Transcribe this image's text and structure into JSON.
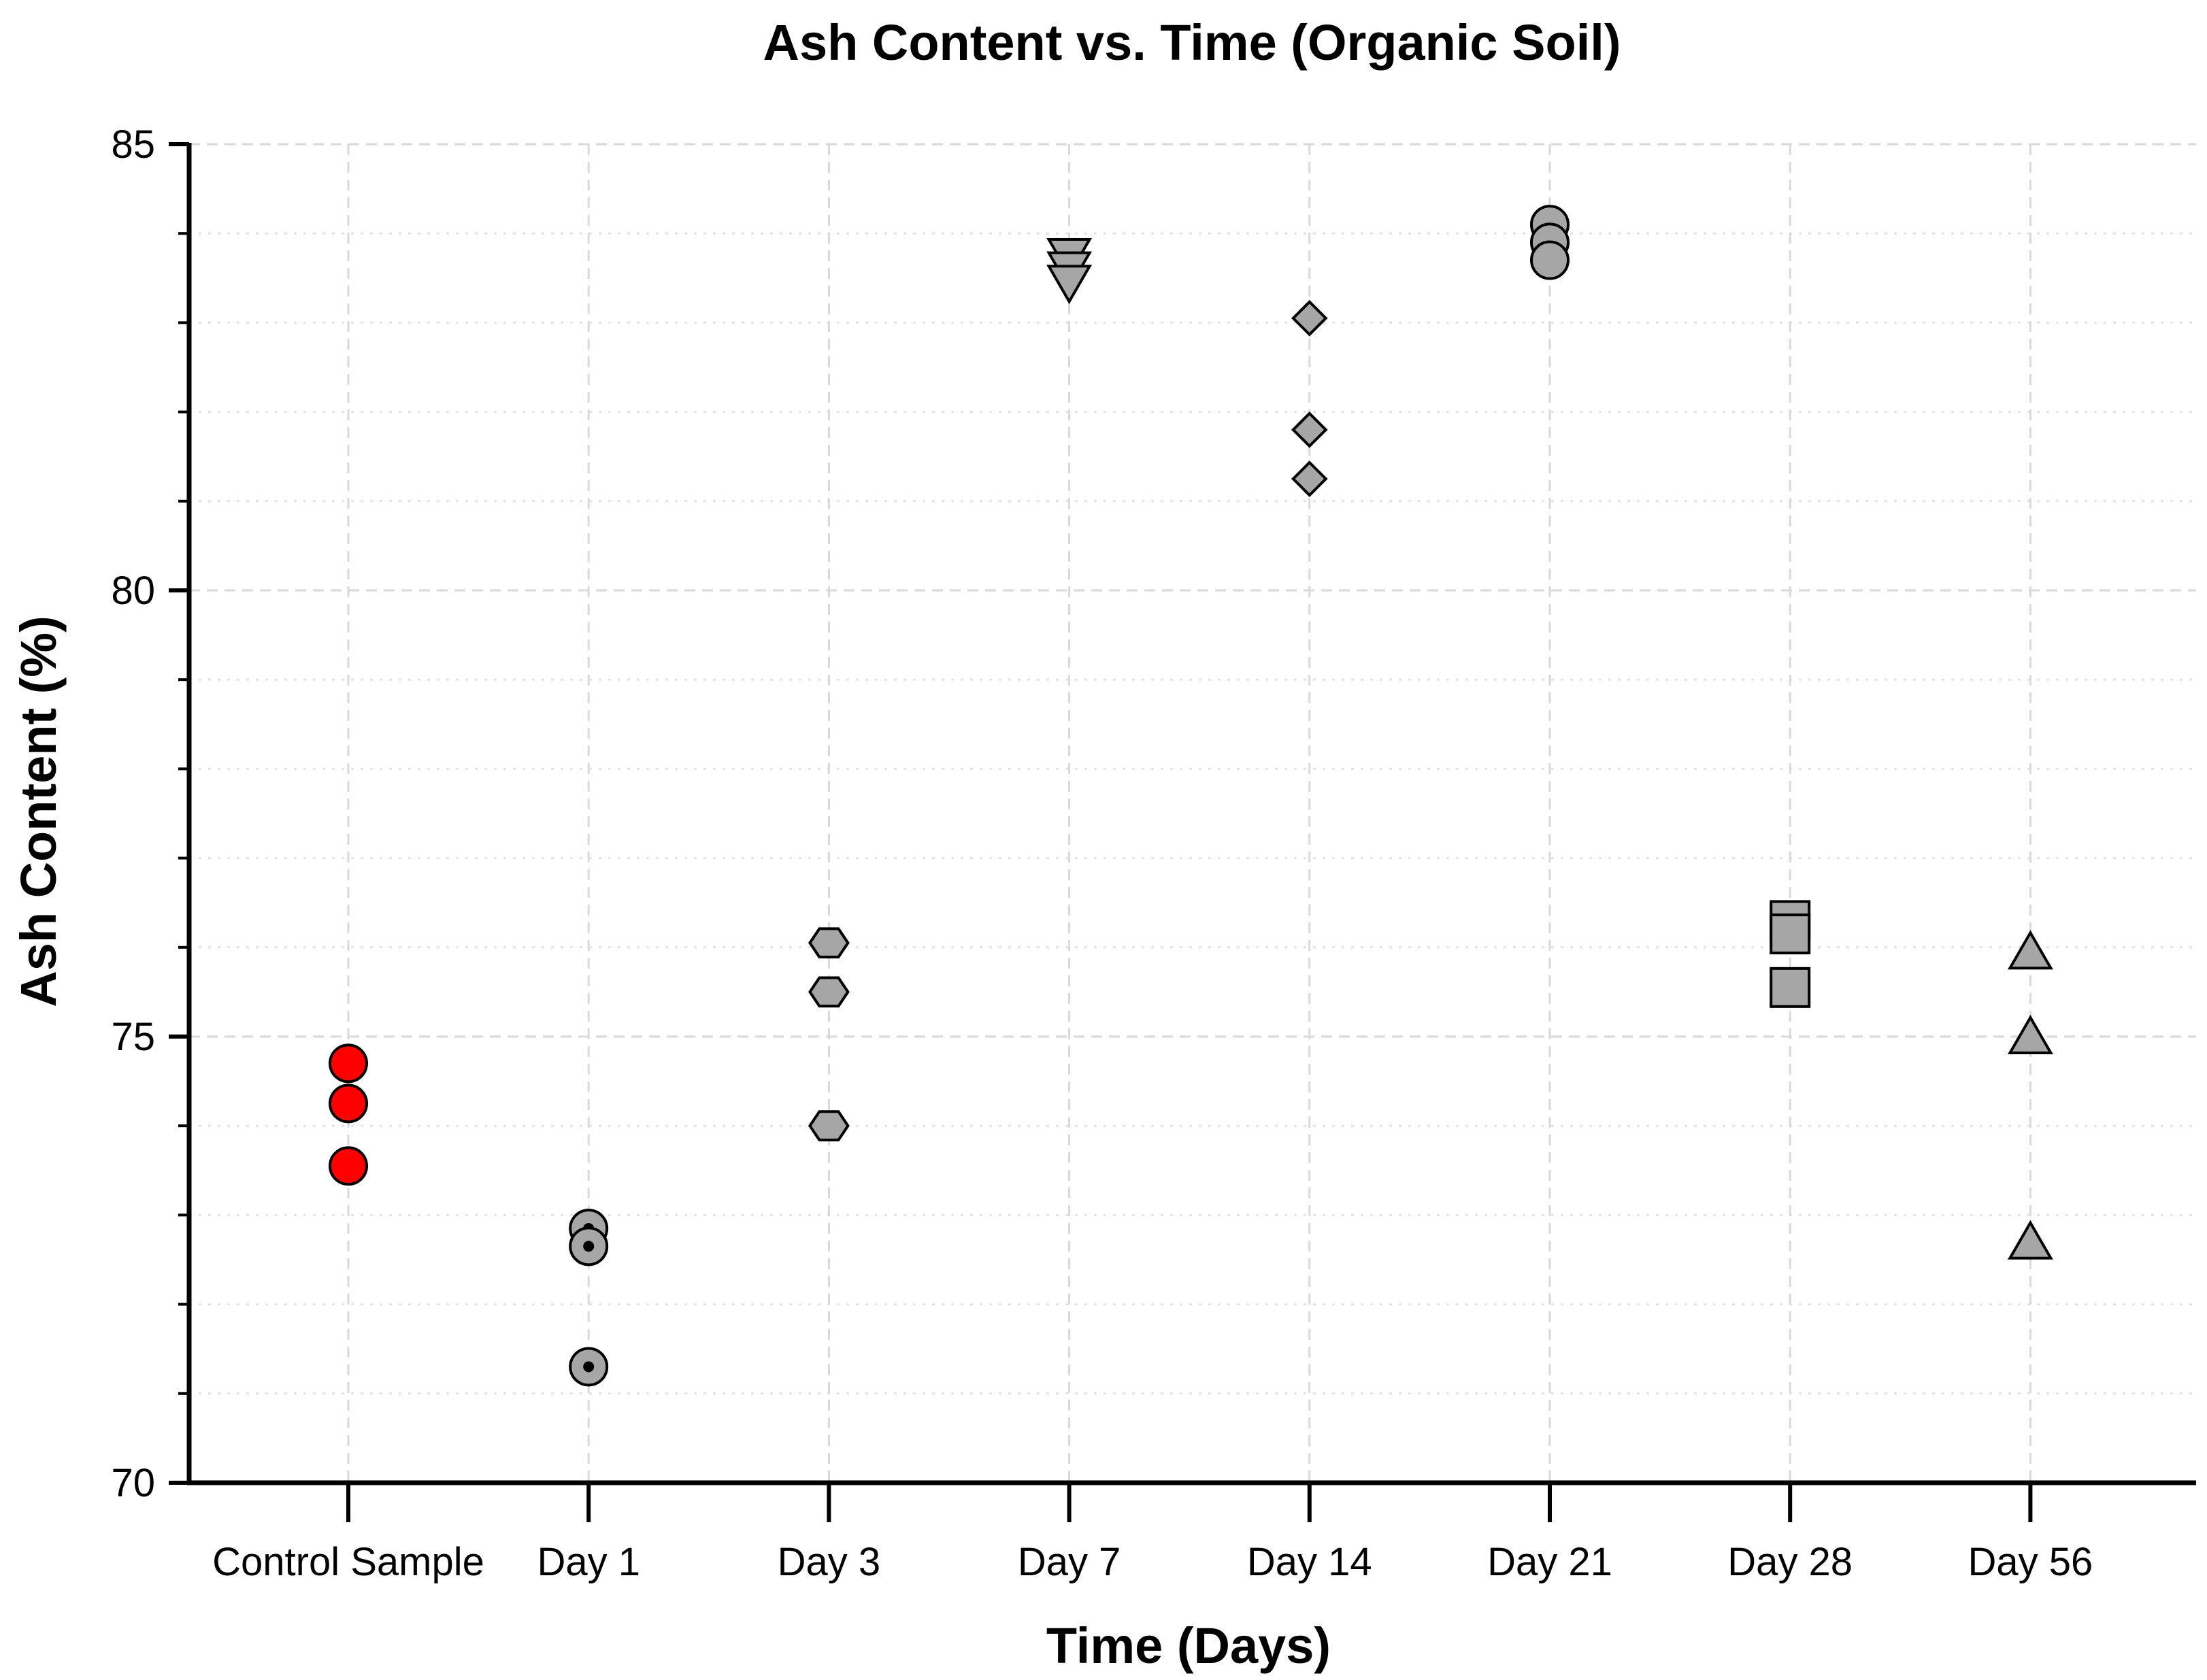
{
  "chart_data": {
    "type": "scatter",
    "title": "Ash Content vs. Time (Organic Soil)",
    "xlabel": "Time (Days)",
    "ylabel": "Ash Content (%)",
    "categories": [
      "Control Sample",
      "Day 1",
      "Day 3",
      "Day 7",
      "Day 14",
      "Day 21",
      "Day 28",
      "Day 56"
    ],
    "ylim": [
      70,
      85
    ],
    "yticks": [
      "70",
      "75",
      "80",
      "85"
    ],
    "grid": true,
    "series": [
      {
        "name": "Control Sample",
        "category": "Control Sample",
        "marker": "circle",
        "color": "#ff0000",
        "values": [
          74.7,
          74.25,
          73.55
        ]
      },
      {
        "name": "Day 1",
        "category": "Day 1",
        "marker": "circle-dot",
        "color": "#a6a6a6",
        "values": [
          72.85,
          72.65,
          71.3
        ]
      },
      {
        "name": "Day 3",
        "category": "Day 3",
        "marker": "hexagon",
        "color": "#a6a6a6",
        "values": [
          76.05,
          75.5,
          74.0
        ]
      },
      {
        "name": "Day 7",
        "category": "Day 7",
        "marker": "triangle-down",
        "color": "#a6a6a6",
        "values": [
          83.75,
          83.6,
          83.45
        ]
      },
      {
        "name": "Day 14",
        "category": "Day 14",
        "marker": "diamond",
        "color": "#a6a6a6",
        "values": [
          83.05,
          81.8,
          81.25
        ]
      },
      {
        "name": "Day 21",
        "category": "Day 21",
        "marker": "circle",
        "color": "#a6a6a6",
        "values": [
          84.1,
          83.9,
          83.7
        ]
      },
      {
        "name": "Day 28",
        "category": "Day 28",
        "marker": "square",
        "color": "#a6a6a6",
        "values": [
          76.3,
          76.15,
          75.55
        ]
      },
      {
        "name": "Day 56",
        "category": "Day 56",
        "marker": "triangle-up",
        "color": "#a6a6a6",
        "values": [
          75.95,
          75.0,
          72.7
        ]
      }
    ]
  }
}
